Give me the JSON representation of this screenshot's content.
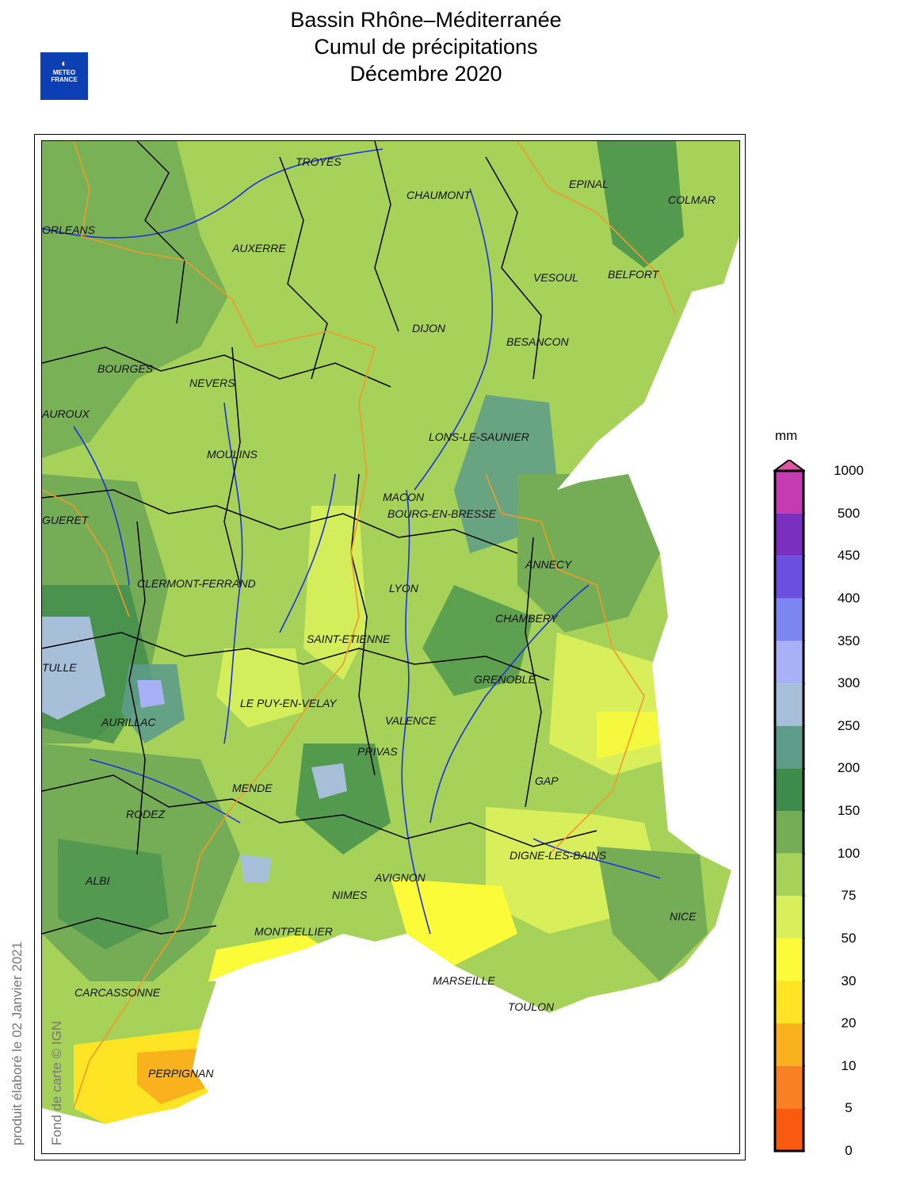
{
  "title": {
    "line1": "Bassin Rhône–Méditerranée",
    "line2": "Cumul de précipitations",
    "line3": "Décembre 2020"
  },
  "logo": {
    "text_top": "METEO",
    "text_bottom": "FRANCE"
  },
  "credits": {
    "produced": "produit élaboré le 02 Janvier 2021",
    "basemap": "Fond de carte © IGN"
  },
  "legend": {
    "unit": "mm",
    "labels": [
      "1000",
      "500",
      "450",
      "400",
      "350",
      "300",
      "250",
      "200",
      "150",
      "100",
      "75",
      "50",
      "30",
      "20",
      "10",
      "5",
      "0"
    ],
    "colors": [
      "#c43cb0",
      "#7a2fbf",
      "#6a4fe0",
      "#7b86f0",
      "#a9b1f6",
      "#a7bfd9",
      "#5e9c8a",
      "#3e8c4c",
      "#74ad56",
      "#a6d25a",
      "#d8ef5b",
      "#fbfb39",
      "#fde525",
      "#f9b21e",
      "#f98025",
      "#fa5a10"
    ]
  },
  "cities": [
    {
      "name": "TROYES"
    },
    {
      "name": "CHAUMONT"
    },
    {
      "name": "EPINAL"
    },
    {
      "name": "COLMAR"
    },
    {
      "name": "ORLEANS"
    },
    {
      "name": "AUXERRE"
    },
    {
      "name": "VESOUL"
    },
    {
      "name": "BELFORT"
    },
    {
      "name": "DIJON"
    },
    {
      "name": "BESANCON"
    },
    {
      "name": "BOURGES"
    },
    {
      "name": "NEVERS"
    },
    {
      "name": "AUROUX"
    },
    {
      "name": "LONS-LE-SAUNIER"
    },
    {
      "name": "MOULINS"
    },
    {
      "name": "MACON"
    },
    {
      "name": "BOURG-EN-BRESSE"
    },
    {
      "name": "GUERET"
    },
    {
      "name": "ANNECY"
    },
    {
      "name": "CLERMONT-FERRAND"
    },
    {
      "name": "LYON"
    },
    {
      "name": "CHAMBERY"
    },
    {
      "name": "SAINT-ETIENNE"
    },
    {
      "name": "TULLE"
    },
    {
      "name": "GRENOBLE"
    },
    {
      "name": "LE PUY-EN-VELAY"
    },
    {
      "name": "AURILLAC"
    },
    {
      "name": "VALENCE"
    },
    {
      "name": "PRIVAS"
    },
    {
      "name": "GAP"
    },
    {
      "name": "MENDE"
    },
    {
      "name": "RODEZ"
    },
    {
      "name": "DIGNE-LES-BAINS"
    },
    {
      "name": "AVIGNON"
    },
    {
      "name": "ALBI"
    },
    {
      "name": "NIMES"
    },
    {
      "name": "NICE"
    },
    {
      "name": "MONTPELLIER"
    },
    {
      "name": "MARSEILLE"
    },
    {
      "name": "CARCASSONNE"
    },
    {
      "name": "TOULON"
    },
    {
      "name": "PERPIGNAN"
    }
  ]
}
